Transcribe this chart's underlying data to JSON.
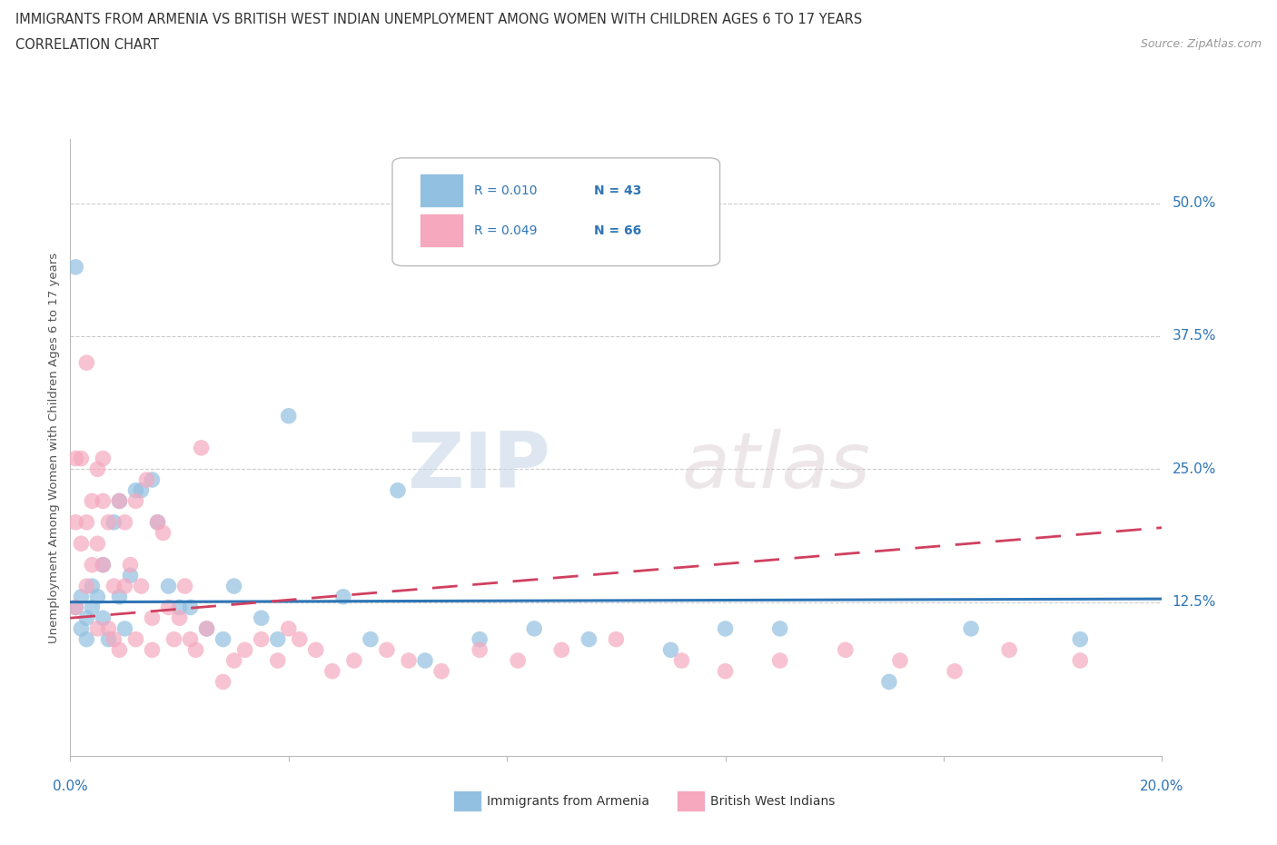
{
  "title_line1": "IMMIGRANTS FROM ARMENIA VS BRITISH WEST INDIAN UNEMPLOYMENT AMONG WOMEN WITH CHILDREN AGES 6 TO 17 YEARS",
  "title_line2": "CORRELATION CHART",
  "source_text": "Source: ZipAtlas.com",
  "ylabel": "Unemployment Among Women with Children Ages 6 to 17 years",
  "xlim": [
    0.0,
    0.2
  ],
  "ylim": [
    -0.02,
    0.56
  ],
  "yticks": [
    0.125,
    0.25,
    0.375,
    0.5
  ],
  "ytick_labels": [
    "12.5%",
    "25.0%",
    "37.5%",
    "50.0%"
  ],
  "legend_r1": "R = 0.010",
  "legend_n1": "N = 43",
  "legend_r2": "R = 0.049",
  "legend_n2": "N = 66",
  "blue_color": "#92C0E0",
  "pink_color": "#F5A8BE",
  "trend_blue": "#2E75B6",
  "trend_pink": "#D04060",
  "background_color": "#FFFFFF",
  "grid_color": "#CCCCCC",
  "blue_x": [
    0.001,
    0.001,
    0.002,
    0.003,
    0.003,
    0.004,
    0.004,
    0.005,
    0.006,
    0.006,
    0.007,
    0.008,
    0.009,
    0.009,
    0.01,
    0.011,
    0.012,
    0.013,
    0.015,
    0.016,
    0.018,
    0.02,
    0.022,
    0.025,
    0.028,
    0.03,
    0.035,
    0.038,
    0.04,
    0.05,
    0.055,
    0.06,
    0.065,
    0.075,
    0.085,
    0.095,
    0.11,
    0.12,
    0.13,
    0.15,
    0.165,
    0.185,
    0.002
  ],
  "blue_y": [
    0.44,
    0.12,
    0.1,
    0.09,
    0.11,
    0.14,
    0.12,
    0.13,
    0.11,
    0.16,
    0.09,
    0.2,
    0.13,
    0.22,
    0.1,
    0.15,
    0.23,
    0.23,
    0.24,
    0.2,
    0.14,
    0.12,
    0.12,
    0.1,
    0.09,
    0.14,
    0.11,
    0.09,
    0.3,
    0.13,
    0.09,
    0.23,
    0.07,
    0.09,
    0.1,
    0.09,
    0.08,
    0.1,
    0.1,
    0.05,
    0.1,
    0.09,
    0.13
  ],
  "pink_x": [
    0.001,
    0.001,
    0.001,
    0.002,
    0.002,
    0.003,
    0.003,
    0.003,
    0.004,
    0.004,
    0.005,
    0.005,
    0.005,
    0.006,
    0.006,
    0.006,
    0.007,
    0.007,
    0.008,
    0.008,
    0.009,
    0.009,
    0.01,
    0.01,
    0.011,
    0.012,
    0.012,
    0.013,
    0.014,
    0.015,
    0.015,
    0.016,
    0.017,
    0.018,
    0.019,
    0.02,
    0.021,
    0.022,
    0.023,
    0.024,
    0.025,
    0.028,
    0.03,
    0.032,
    0.035,
    0.038,
    0.04,
    0.042,
    0.045,
    0.048,
    0.052,
    0.058,
    0.062,
    0.068,
    0.075,
    0.082,
    0.09,
    0.1,
    0.112,
    0.12,
    0.13,
    0.142,
    0.152,
    0.162,
    0.172,
    0.185
  ],
  "pink_y": [
    0.12,
    0.2,
    0.26,
    0.18,
    0.26,
    0.14,
    0.2,
    0.35,
    0.16,
    0.22,
    0.18,
    0.25,
    0.1,
    0.16,
    0.22,
    0.26,
    0.2,
    0.1,
    0.09,
    0.14,
    0.22,
    0.08,
    0.14,
    0.2,
    0.16,
    0.22,
    0.09,
    0.14,
    0.24,
    0.11,
    0.08,
    0.2,
    0.19,
    0.12,
    0.09,
    0.11,
    0.14,
    0.09,
    0.08,
    0.27,
    0.1,
    0.05,
    0.07,
    0.08,
    0.09,
    0.07,
    0.1,
    0.09,
    0.08,
    0.06,
    0.07,
    0.08,
    0.07,
    0.06,
    0.08,
    0.07,
    0.08,
    0.09,
    0.07,
    0.06,
    0.07,
    0.08,
    0.07,
    0.06,
    0.08,
    0.07
  ],
  "watermark_zip": "ZIP",
  "watermark_atlas": "atlas",
  "blue_trend_x0": 0.0,
  "blue_trend_y0": 0.125,
  "blue_trend_x1": 0.2,
  "blue_trend_y1": 0.128,
  "pink_trend_x0": 0.0,
  "pink_trend_y0": 0.11,
  "pink_trend_x1": 0.2,
  "pink_trend_y1": 0.195
}
